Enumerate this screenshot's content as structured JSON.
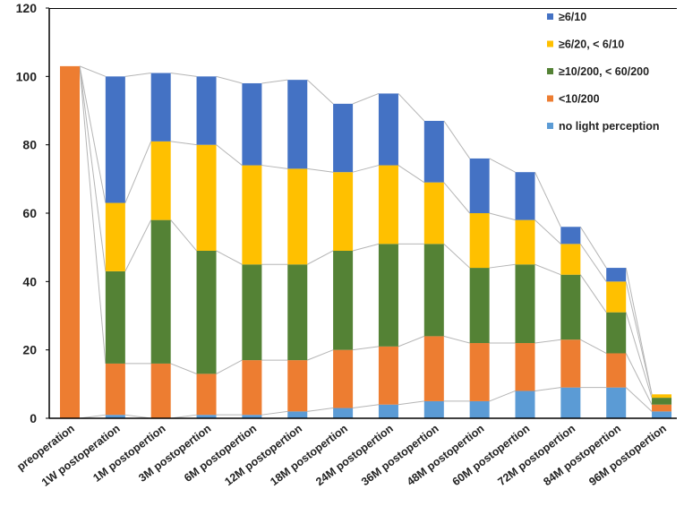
{
  "chart_data": {
    "type": "bar",
    "stacked": true,
    "title": "",
    "xlabel": "",
    "ylabel": "",
    "ylim": [
      0,
      120
    ],
    "yticks": [
      0,
      20,
      40,
      60,
      80,
      100,
      120
    ],
    "grid": false,
    "legend_position": "top-right",
    "connector_lines": true,
    "categories": [
      "preoperation",
      "1W postoperation",
      "1M postopertion",
      "3M postopertion",
      "6M postopertion",
      "12M postopertion",
      "18M postopertion",
      "24M postopertion",
      "36M postopertion",
      "48M postopertion",
      "60M postopertion",
      "72M postopertion",
      "84M postopertion",
      "96M postopertion"
    ],
    "series": [
      {
        "name": "no light perception",
        "color": "#5B9BD5",
        "values": [
          0,
          1,
          0,
          1,
          1,
          2,
          3,
          4,
          5,
          5,
          8,
          9,
          9,
          2
        ]
      },
      {
        "name": "<10/200",
        "color": "#ED7D31",
        "values": [
          103,
          15,
          16,
          12,
          16,
          15,
          17,
          17,
          19,
          17,
          14,
          14,
          10,
          2
        ]
      },
      {
        "name": "≥10/200, < 60/200",
        "color": "#548235",
        "values": [
          0,
          27,
          42,
          36,
          28,
          28,
          29,
          30,
          27,
          22,
          23,
          19,
          12,
          2
        ]
      },
      {
        "name": "≥6/20, < 6/10",
        "color": "#FFC000",
        "values": [
          0,
          20,
          23,
          31,
          29,
          28,
          23,
          23,
          18,
          16,
          13,
          9,
          9,
          1
        ]
      },
      {
        "name": "≥6/10",
        "color": "#4472C4",
        "values": [
          0,
          37,
          20,
          20,
          24,
          26,
          20,
          21,
          18,
          16,
          14,
          5,
          4,
          0
        ]
      }
    ],
    "legend_order": [
      "≥6/10",
      "≥6/20, < 6/10",
      "≥10/200, < 60/200",
      "<10/200",
      "no light perception"
    ]
  }
}
